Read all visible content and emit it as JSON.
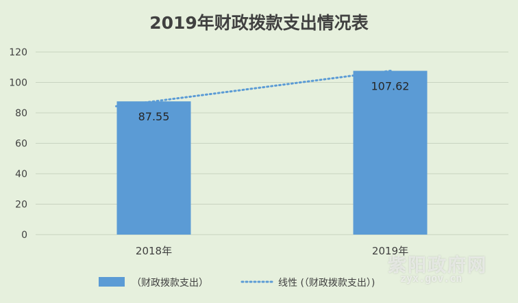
{
  "chart_data": {
    "type": "bar",
    "title": "2019年财政拨款支出情况表",
    "categories": [
      "2018年",
      "2019年"
    ],
    "series": [
      {
        "name": "（财政拨款支出）",
        "values": [
          87.55,
          107.62
        ],
        "data_labels": [
          "87.55",
          "107.62"
        ]
      }
    ],
    "trendline": {
      "name": "线性 (（财政拨款支出）)",
      "type": "linear"
    },
    "ylim": [
      0,
      120
    ],
    "yticks": [
      0,
      20,
      40,
      60,
      80,
      100,
      120
    ],
    "gridlines": true,
    "legend_position": "bottom",
    "colors": {
      "bar": "#5b9bd5",
      "trendline": "#5b9bd5",
      "grid": "#c8d3c0",
      "axis_text": "#404040"
    }
  },
  "watermark": {
    "text": "紫阳政府网",
    "url": "zyx.gov.cn"
  }
}
